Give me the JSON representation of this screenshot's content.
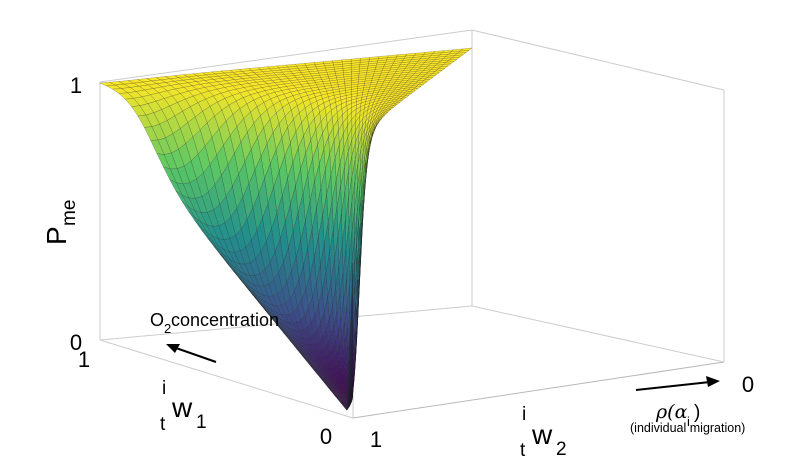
{
  "chart_data": {
    "type": "surface3d",
    "title": "",
    "zlabel": {
      "main": "P",
      "sub": "me"
    },
    "z_ticks": [
      "0",
      "1"
    ],
    "zlim": [
      0,
      1
    ],
    "axis_w1": {
      "pre_sup": "i",
      "pre_sub": "t",
      "main": "w",
      "sub": "1",
      "ticks": [
        "1",
        "0"
      ]
    },
    "axis_w2": {
      "pre_sup": "i",
      "pre_sub": "t",
      "main": "w",
      "sub": "2",
      "ticks": [
        "1",
        "0"
      ]
    },
    "annotation_o2": {
      "main": "O",
      "sub": "2",
      "rest": " concentration"
    },
    "annotation_rho": {
      "rho": "ρ(α",
      "sub": "i",
      "close": ")",
      "note": "(individual migration)"
    },
    "colormap": [
      "#440154",
      "#3b528b",
      "#21908d",
      "#5dc963",
      "#fde725"
    ],
    "surface": {
      "description_of_shape": "P_me ≈ 1 for small w1, drops sharply to ≈0 around a threshold, with tail decreasing along w2",
      "grid_size": 40
    }
  }
}
